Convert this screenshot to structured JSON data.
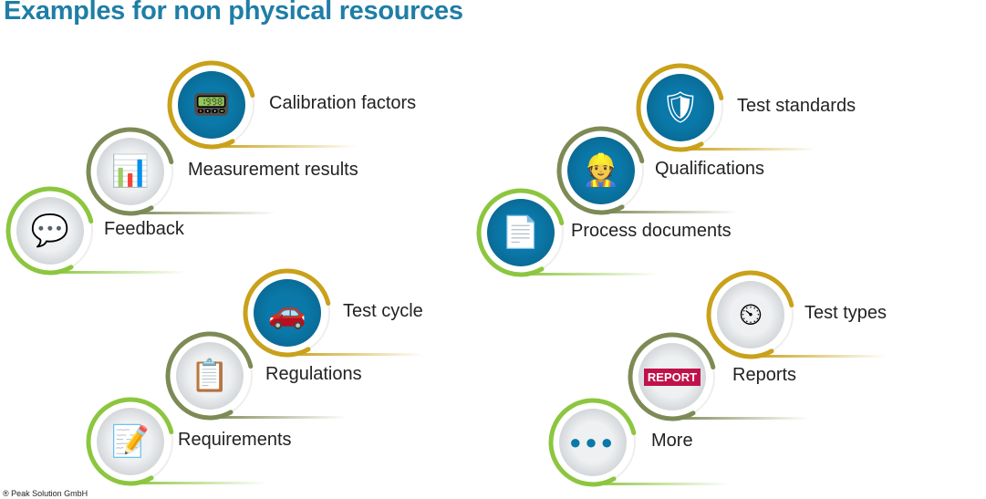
{
  "title": "Examples for non physical resources",
  "copyright": "® Peak Solution GmbH",
  "colors": {
    "gold": "#c9a11a",
    "olive": "#7d8a55",
    "green": "#8cc63f",
    "blue": "#0a78a8",
    "light": "#eef0f2"
  },
  "items": [
    {
      "label": "Calibration factors",
      "icon": "calibration-device-icon",
      "ring": "gold",
      "disc": "blue",
      "glyph": "📟"
    },
    {
      "label": "Measurement results",
      "icon": "chart-magnifier-icon",
      "ring": "olive",
      "disc": "light",
      "glyph": "📊"
    },
    {
      "label": "Feedback",
      "icon": "feedback-chat-icon",
      "ring": "green",
      "disc": "light",
      "glyph": "💬"
    },
    {
      "label": "Test cycle",
      "icon": "car-cycle-icon",
      "ring": "gold",
      "disc": "blue",
      "glyph": "🚗"
    },
    {
      "label": "Regulations",
      "icon": "checklist-badge-icon",
      "ring": "olive",
      "disc": "light",
      "glyph": "📋"
    },
    {
      "label": "Requirements",
      "icon": "document-pen-icon",
      "ring": "green",
      "disc": "light",
      "glyph": "📝"
    },
    {
      "label": "Test standards",
      "icon": "clipboard-shield-icon",
      "ring": "gold",
      "disc": "blue",
      "glyph": "🛡"
    },
    {
      "label": "Qualifications",
      "icon": "worker-checks-icon",
      "ring": "olive",
      "disc": "blue",
      "glyph": "👷"
    },
    {
      "label": "Process documents",
      "icon": "documents-cycle-icon",
      "ring": "green",
      "disc": "blue",
      "glyph": "📄"
    },
    {
      "label": "Test types",
      "icon": "speedometer-icon",
      "ring": "gold",
      "disc": "light",
      "glyph": "⏲"
    },
    {
      "label": "Reports",
      "icon": "report-document-icon",
      "ring": "olive",
      "disc": "light",
      "glyph": "REPORT"
    },
    {
      "label": "More",
      "icon": "more-dots-icon",
      "ring": "green",
      "disc": "light",
      "glyph": "●●●"
    }
  ]
}
